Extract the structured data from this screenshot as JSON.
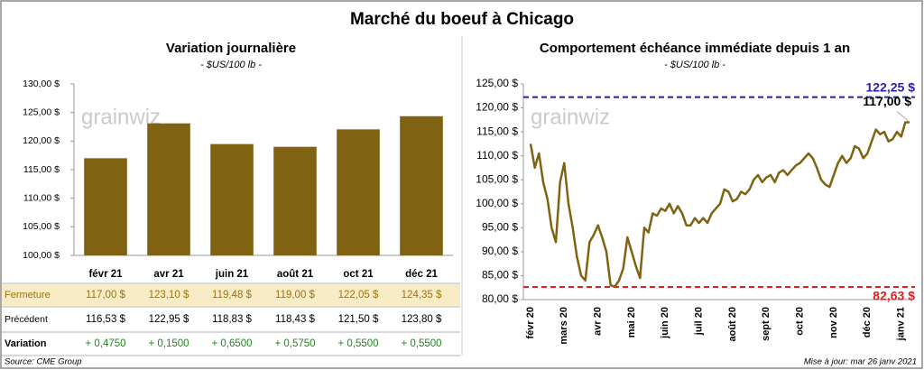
{
  "title": "Marché du boeuf à Chicago",
  "chart_data": [
    {
      "type": "bar",
      "title": "Variation journalière",
      "subtitle": "- $US/100 lb -",
      "watermark": "grainwiz",
      "categories": [
        "févr 21",
        "avr 21",
        "juin 21",
        "août 21",
        "oct 21",
        "déc 21"
      ],
      "series": [
        {
          "name": "Fermeture",
          "color": "#7f6312",
          "values": [
            117.0,
            123.1,
            119.48,
            119.0,
            122.05,
            124.35
          ],
          "value_labels": [
            "117,00 $",
            "123,10 $",
            "119,48 $",
            "119,00 $",
            "122,05 $",
            "124,35 $"
          ]
        }
      ],
      "ylim": [
        100,
        130
      ],
      "yticks": [
        {
          "value": 100,
          "label": "100,00 $"
        },
        {
          "value": 105,
          "label": "105,00 $"
        },
        {
          "value": 110,
          "label": "110,00 $"
        },
        {
          "value": 115,
          "label": "115,00 $"
        },
        {
          "value": 120,
          "label": "120,00 $"
        },
        {
          "value": 125,
          "label": "125,00 $"
        },
        {
          "value": 130,
          "label": "130,00 $"
        }
      ],
      "grid": false
    },
    {
      "type": "line",
      "title": "Comportement  échéance immédiate depuis 1 an",
      "subtitle": "- $US/100 lb -",
      "watermark": "grainwiz",
      "categories": [
        "févr 20",
        null,
        null,
        null,
        null,
        null,
        null,
        null,
        "mars 20",
        null,
        null,
        null,
        null,
        null,
        null,
        null,
        "avr 20",
        null,
        null,
        null,
        null,
        null,
        null,
        null,
        "mai 20",
        null,
        null,
        null,
        null,
        null,
        null,
        null,
        "juin 20",
        null,
        null,
        null,
        null,
        null,
        null,
        null,
        "juil 20",
        null,
        null,
        null,
        null,
        null,
        null,
        null,
        "août 20",
        null,
        null,
        null,
        null,
        null,
        null,
        null,
        "sept 20",
        null,
        null,
        null,
        null,
        null,
        null,
        null,
        "oct 20",
        null,
        null,
        null,
        null,
        null,
        null,
        null,
        "nov 20",
        null,
        null,
        null,
        null,
        null,
        null,
        null,
        "déc 20",
        null,
        null,
        null,
        null,
        null,
        null,
        null,
        "janv 21",
        null,
        null
      ],
      "series": [
        {
          "name": "Échéance immédiate",
          "color": "#7f6312",
          "values": [
            112.5,
            107.5,
            110.5,
            104.5,
            101,
            95,
            92,
            104.5,
            108.5,
            100,
            95,
            89,
            85,
            84,
            92,
            93.5,
            95.5,
            93,
            90,
            83,
            82.7,
            84,
            86.5,
            93,
            90,
            87,
            84.5,
            95,
            94,
            98,
            97.5,
            99,
            98.5,
            100,
            98,
            99.5,
            98,
            95.5,
            95.5,
            97,
            96,
            97,
            96,
            98,
            99,
            100,
            103,
            102.5,
            100.5,
            101,
            102.5,
            102,
            103,
            105,
            106,
            104.5,
            105.5,
            106,
            104.5,
            106.5,
            107,
            106,
            107,
            108,
            108.5,
            109.5,
            110.5,
            109.5,
            107.5,
            105,
            104,
            103.5,
            106,
            108.5,
            110,
            108.5,
            109.5,
            112,
            111.5,
            109.5,
            110.5,
            113,
            115.5,
            114.5,
            115,
            113,
            113.5,
            115,
            114,
            117,
            117
          ]
        }
      ],
      "ylim": [
        80,
        125
      ],
      "yticks": [
        {
          "value": 80,
          "label": "80,00 $"
        },
        {
          "value": 85,
          "label": "85,00 $"
        },
        {
          "value": 90,
          "label": "90,00 $"
        },
        {
          "value": 95,
          "label": "95,00 $"
        },
        {
          "value": 100,
          "label": "100,00 $"
        },
        {
          "value": 105,
          "label": "105,00 $"
        },
        {
          "value": 110,
          "label": "110,00 $"
        },
        {
          "value": 115,
          "label": "115,00 $"
        },
        {
          "value": 120,
          "label": "120,00 $"
        },
        {
          "value": 125,
          "label": "125,00 $"
        }
      ],
      "reference_lines": [
        {
          "value": 122.25,
          "label": "122,25 $",
          "color": "#2a1fa8"
        },
        {
          "value": 82.63,
          "label": "82,63 $",
          "color": "#e02020"
        }
      ],
      "end_annotation": {
        "value": 117,
        "label": "117,00 $"
      },
      "grid": false
    }
  ],
  "table": {
    "rows": [
      {
        "label": "Précédent",
        "cells": [
          "116,53 $",
          "122,95 $",
          "118,83 $",
          "118,43 $",
          "121,50 $",
          "123,80 $"
        ]
      },
      {
        "label": "Variation",
        "cells": [
          "+ 0,4750",
          "+ 0,1500",
          "+ 0,6500",
          "+ 0,5750",
          "+ 0,5500",
          "+ 0,5500"
        ]
      }
    ]
  },
  "footer": {
    "source": "Source: CME Group",
    "updated": "Mise à jour: mar 26 janv 2021"
  }
}
